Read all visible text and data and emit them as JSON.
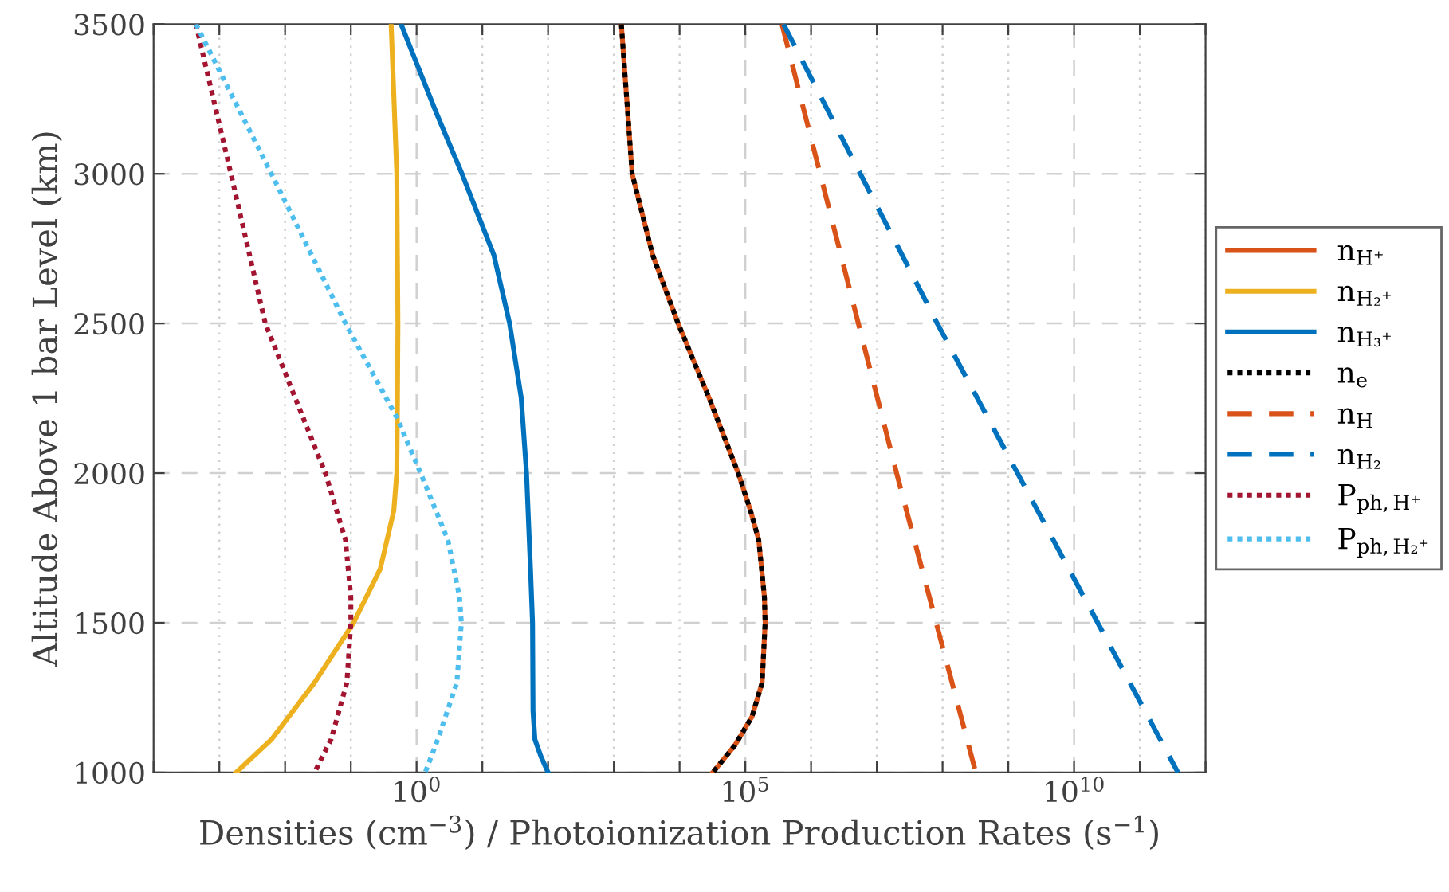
{
  "chart_data": {
    "type": "line",
    "xlabel": "Densities (cm$^{−3}$) / Photoionization Production Rates (s$^{−1}$)",
    "ylabel": "Altitude Above 1 bar Level (km)",
    "log": "x",
    "grid": true,
    "legend": "right",
    "xlim": [
      0.0001,
      1000000000000
    ],
    "ylim": [
      1000,
      3500
    ],
    "xticks": [
      {
        "value": 0.0001,
        "label": null
      },
      {
        "value": 0.001,
        "label": null
      },
      {
        "value": 0.01,
        "label": null
      },
      {
        "value": 0.1,
        "label": null
      },
      {
        "value": 1,
        "label": "10$^{0}$"
      },
      {
        "value": 10,
        "label": null
      },
      {
        "value": 100,
        "label": null
      },
      {
        "value": 1000,
        "label": null
      },
      {
        "value": 10000,
        "label": null
      },
      {
        "value": 100000,
        "label": "10$^{5}$"
      },
      {
        "value": 1000000,
        "label": null
      },
      {
        "value": 10000000,
        "label": null
      },
      {
        "value": 100000000,
        "label": null
      },
      {
        "value": 1000000000,
        "label": null
      },
      {
        "value": 10000000000,
        "label": "10$^{10}$"
      },
      {
        "value": 100000000000,
        "label": null
      },
      {
        "value": 1000000000000,
        "label": null
      }
    ],
    "yticks": [
      1000,
      1500,
      2000,
      2500,
      3000,
      3500
    ],
    "series": [
      {
        "name": "n$_{H⁺}$",
        "color": "#d95319",
        "line_style": "solid",
        "x": [
          1300,
          1900,
          3900,
          9500,
          28000,
          78000,
          120000,
          160000,
          195000,
          200000,
          180000,
          126000,
          69000,
          32000
        ],
        "values": [
          3500,
          3000,
          2728,
          2500,
          2252,
          2000,
          1874,
          1776,
          1586,
          1500,
          1300,
          1186,
          1090,
          1000
        ]
      },
      {
        "name": "n$_{H₂⁺}$",
        "color": "#edb120",
        "line_style": "solid",
        "x": [
          0.41,
          0.5,
          0.52,
          0.51,
          0.5,
          0.45,
          0.28,
          0.11,
          0.028,
          0.0062,
          0.0018
        ],
        "values": [
          3500,
          3000,
          2500,
          2200,
          2000,
          1874,
          1680,
          1500,
          1300,
          1110,
          1000
        ]
      },
      {
        "name": "n$_{H₃⁺}$",
        "color": "#0072bd",
        "line_style": "solid",
        "x": [
          0.58,
          2.0,
          4.9,
          15,
          26,
          39,
          47,
          54,
          58,
          59,
          63,
          78,
          100
        ],
        "values": [
          3500,
          3203,
          3000,
          2728,
          2500,
          2252,
          2000,
          1680,
          1500,
          1205,
          1110,
          1053,
          1000
        ]
      },
      {
        "name": "n$_{e}$",
        "color": "#000000",
        "line_style": "dotted",
        "x": [
          1300,
          1900,
          3900,
          9500,
          28000,
          78000,
          120000,
          160000,
          195000,
          200000,
          180000,
          126000,
          69000,
          32000
        ],
        "values": [
          3500,
          3000,
          2728,
          2500,
          2252,
          2000,
          1874,
          1776,
          1586,
          1500,
          1300,
          1186,
          1090,
          1000
        ]
      },
      {
        "name": "n$_{H}$",
        "color": "#d95319",
        "line_style": "dashed",
        "x": [
          360000,
          20000000,
          320000000
        ],
        "values": [
          3500,
          2000,
          1000
        ]
      },
      {
        "name": "n$_{H₂}$",
        "color": "#0072bd",
        "line_style": "dashed",
        "x": [
          380000,
          83000000,
          380000000000
        ],
        "values": [
          3500,
          2500,
          1000
        ]
      },
      {
        "name": "P$_{ph,H⁺}$",
        "color": "#a2142f",
        "line_style": "dotted",
        "x": [
          0.00044,
          0.0015,
          0.005,
          0.041,
          0.083,
          0.1,
          0.1,
          0.087,
          0.05,
          0.028
        ],
        "values": [
          3500,
          3000,
          2500,
          2000,
          1776,
          1586,
          1500,
          1300,
          1110,
          1000
        ]
      },
      {
        "name": "P$_{ph,H₂⁺}$",
        "color": "#4dbeee",
        "line_style": "dotted",
        "x": [
          0.00044,
          0.0062,
          0.083,
          0.5,
          1.15,
          3.0,
          4.5,
          4.8,
          4.1,
          2.1,
          1.35
        ],
        "values": [
          3500,
          3000,
          2500,
          2186,
          2000,
          1776,
          1586,
          1500,
          1300,
          1110,
          1000
        ]
      }
    ]
  }
}
